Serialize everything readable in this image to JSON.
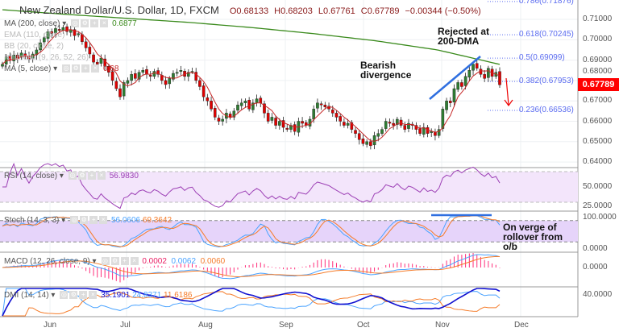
{
  "header": {
    "symbol": "New Zealand Dollar/U.S. Dollar, 1D, FXCM",
    "open": "O0.68133",
    "high": "H0.68203",
    "low": "L0.67761",
    "close": "C0.67789",
    "change": "−0.00344 (−0.50%)"
  },
  "legends": {
    "ma200": {
      "label": "MA (200, close)",
      "value": "0.6877"
    },
    "ema": {
      "label": "EMA (110, close)"
    },
    "bb": {
      "label": "BB (20, close, 2)"
    },
    "ichi": {
      "label": "Ichimoku (9, 26, 52, 26)"
    },
    "ma5": {
      "label": "MA (5, close)",
      "value": "0.68"
    },
    "rsi": {
      "label": "RSI (14, close)",
      "value": "56.9830"
    },
    "stoch": {
      "label": "Stoch (14, 3, 3)",
      "k": "56.0606",
      "d": "69.3642"
    },
    "macd": {
      "label": "MACD (12, 26, close, 9)",
      "hist": "0.0002",
      "macd": "0.0062",
      "signal": "0.0060"
    },
    "dmi": {
      "label": "DMI (14, 14)",
      "adx": "35.1901",
      "plus": "24.8371",
      "minus": "11.6186"
    }
  },
  "price_axis": [
    "0.71000",
    "0.70000",
    "0.69000",
    "0.68000",
    "0.67000",
    "0.66000",
    "0.65000",
    "0.64000"
  ],
  "last_price": "0.67789",
  "indicator_axis": {
    "rsi": [
      "50.0000",
      "25.0000"
    ],
    "stoch": [
      "100.0000",
      "0.0000"
    ],
    "macd": [
      "0.0000"
    ],
    "dmi": [
      "40.0000"
    ]
  },
  "months": [
    "Jun",
    "Jul",
    "Aug",
    "Sep",
    "Oct",
    "Nov",
    "Dec"
  ],
  "fib": [
    {
      "label": "0.786(0.71876)",
      "price": 0.71876
    },
    {
      "label": "0.618(0.70245)",
      "price": 0.70245
    },
    {
      "label": "0.5(0.69099)",
      "price": 0.69099
    },
    {
      "label": "0.382(0.67953)",
      "price": 0.67953
    },
    {
      "label": "0.236(0.66536)",
      "price": 0.66536
    }
  ],
  "annotations": {
    "rejected": "Rejected at\n200-DMA",
    "divergence": "Bearish\ndivergence",
    "stoch_note": "On verge of\nrollover from\no/b"
  },
  "colors": {
    "up": "#2e7d32",
    "down": "#e00000",
    "ma200": "#3a8a1c",
    "ma5": "#c62828",
    "rsi": "#9c3fb5",
    "k": "#4aa3ff",
    "d": "#f57c2a",
    "fib": "#5b6cf0",
    "adx": "#1010d0"
  },
  "chart_data": {
    "type": "candlestick",
    "title": "New Zealand Dollar/U.S. Dollar, 1D, FXCM",
    "ylim": [
      0.64,
      0.715
    ],
    "x_ticks": [
      "Jun",
      "Jul",
      "Aug",
      "Sep",
      "Oct",
      "Nov",
      "Dec"
    ],
    "closes": [
      0.688,
      0.6915,
      0.69,
      0.6925,
      0.691,
      0.6935,
      0.692,
      0.6905,
      0.693,
      0.695,
      0.6985,
      0.701,
      0.704,
      0.703,
      0.7055,
      0.7045,
      0.706,
      0.704,
      0.705,
      0.702,
      0.703,
      0.699,
      0.696,
      0.693,
      0.689,
      0.688,
      0.691,
      0.687,
      0.684,
      0.68,
      0.676,
      0.672,
      0.679,
      0.68,
      0.683,
      0.681,
      0.684,
      0.685,
      0.683,
      0.682,
      0.6845,
      0.683,
      0.68,
      0.678,
      0.681,
      0.6835,
      0.684,
      0.685,
      0.682,
      0.684,
      0.6845,
      0.68,
      0.677,
      0.672,
      0.67,
      0.666,
      0.662,
      0.66,
      0.661,
      0.664,
      0.662,
      0.665,
      0.668,
      0.669,
      0.67,
      0.666,
      0.669,
      0.671,
      0.669,
      0.664,
      0.66,
      0.662,
      0.658,
      0.66,
      0.657,
      0.656,
      0.658,
      0.655,
      0.66,
      0.659,
      0.658,
      0.661,
      0.666,
      0.669,
      0.668,
      0.667,
      0.666,
      0.664,
      0.662,
      0.66,
      0.658,
      0.659,
      0.656,
      0.654,
      0.651,
      0.649,
      0.65,
      0.648,
      0.653,
      0.654,
      0.656,
      0.66,
      0.659,
      0.658,
      0.661,
      0.658,
      0.656,
      0.659,
      0.658,
      0.656,
      0.654,
      0.657,
      0.654,
      0.655,
      0.653,
      0.656,
      0.666,
      0.67,
      0.669,
      0.676,
      0.679,
      0.677,
      0.682,
      0.685,
      0.688,
      0.686,
      0.683,
      0.681,
      0.686,
      0.682,
      0.684,
      0.6779
    ],
    "ma200_anchors": [
      0.7147,
      0.7125,
      0.7105,
      0.7085,
      0.706,
      0.703,
      0.6995,
      0.695,
      0.6879
    ]
  }
}
